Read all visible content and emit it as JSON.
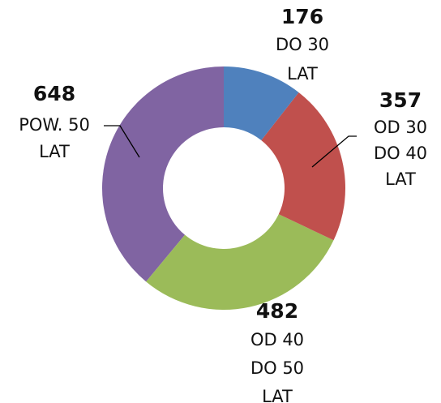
{
  "chart_data": {
    "type": "donut",
    "categories": [
      [
        "DO 30",
        "LAT"
      ],
      [
        "OD 30",
        "DO 40",
        "LAT"
      ],
      [
        "OD 40",
        "DO 50",
        "LAT"
      ],
      [
        "POW. 50",
        "LAT"
      ]
    ],
    "values": [
      176,
      357,
      482,
      648
    ],
    "colors": [
      "#4f81bd",
      "#c0504d",
      "#9bbb59",
      "#8064a2"
    ]
  }
}
